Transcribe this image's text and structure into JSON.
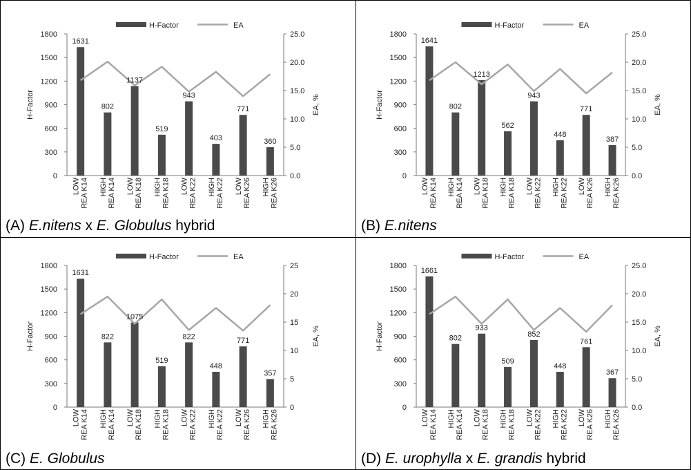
{
  "legend": {
    "bar_label": "H-Factor",
    "line_label": "EA",
    "bar_color": "#4a4a4a",
    "line_color": "#a6a6a6"
  },
  "chart_data": [
    {
      "type": "bar",
      "panel": "A",
      "caption": [
        {
          "text": "(A) ",
          "italic": false
        },
        {
          "text": "E.nitens",
          "italic": true
        },
        {
          "text": " x ",
          "italic": false
        },
        {
          "text": "E. Globulus",
          "italic": true
        },
        {
          "text": " hybrid",
          "italic": false
        }
      ],
      "categories": [
        [
          "LOW",
          "REA K14"
        ],
        [
          "HIGH",
          "REA K14"
        ],
        [
          "LOW",
          "REA K18"
        ],
        [
          "HIGH",
          "REA K18"
        ],
        [
          "LOW",
          "REA K22"
        ],
        [
          "HIGH",
          "REA K22"
        ],
        [
          "LOW",
          "REA K26"
        ],
        [
          "HIGH",
          "REA K26"
        ]
      ],
      "series": [
        {
          "name": "H-Factor",
          "type": "bar",
          "axis": "left",
          "values": [
            1631,
            802,
            1137,
            519,
            943,
            403,
            771,
            360
          ]
        },
        {
          "name": "EA",
          "type": "line",
          "axis": "right",
          "values": [
            16.8,
            20.1,
            15.9,
            19.2,
            14.8,
            18.3,
            14.0,
            17.9
          ]
        }
      ],
      "ylabel": "H-Factor",
      "y2label": "EA, %",
      "ylim": [
        0,
        1800
      ],
      "yticks": [
        "0",
        "300",
        "600",
        "900",
        "1200",
        "1500",
        "1800"
      ],
      "y2lim": [
        0,
        25
      ],
      "y2ticks": [
        "0.0",
        "5.0",
        "10.0",
        "15.0",
        "20.0",
        "25.0"
      ],
      "data_labels": [
        "1631",
        "802",
        "1137",
        "519",
        "943",
        "403",
        "771",
        "360"
      ]
    },
    {
      "type": "bar",
      "panel": "B",
      "caption": [
        {
          "text": "(B) ",
          "italic": false
        },
        {
          "text": "E.nitens",
          "italic": true
        }
      ],
      "categories": [
        [
          "LOW",
          "REA K14"
        ],
        [
          "HIGH",
          "REA K14"
        ],
        [
          "LOW",
          "REA K18"
        ],
        [
          "HIGH",
          "REA K18"
        ],
        [
          "LOW",
          "REA K22"
        ],
        [
          "HIGH",
          "REA K22"
        ],
        [
          "LOW",
          "REA K26"
        ],
        [
          "HIGH",
          "REA K26"
        ]
      ],
      "series": [
        {
          "name": "H-Factor",
          "type": "bar",
          "axis": "left",
          "values": [
            1641,
            802,
            1213,
            562,
            943,
            448,
            771,
            387
          ]
        },
        {
          "name": "EA",
          "type": "line",
          "axis": "right",
          "values": [
            16.8,
            20.0,
            16.1,
            19.6,
            14.9,
            18.8,
            14.5,
            18.2
          ]
        }
      ],
      "ylabel": "H-Factor",
      "y2label": "EA, %",
      "ylim": [
        0,
        1800
      ],
      "yticks": [
        "0",
        "300",
        "600",
        "900",
        "1200",
        "1500",
        "1800"
      ],
      "y2lim": [
        0,
        25
      ],
      "y2ticks": [
        "0.0",
        "5.0",
        "10.0",
        "15.0",
        "20.0",
        "25.0"
      ],
      "data_labels": [
        "1641",
        "802",
        "1213",
        "562",
        "943",
        "448",
        "771",
        "387"
      ]
    },
    {
      "type": "bar",
      "panel": "C",
      "caption": [
        {
          "text": "(C) ",
          "italic": false
        },
        {
          "text": "E. Globulus",
          "italic": true
        }
      ],
      "categories": [
        [
          "LOW",
          "REA K14"
        ],
        [
          "HIGH",
          "REA K14"
        ],
        [
          "LOW",
          "REA K18"
        ],
        [
          "HIGH",
          "REA K18"
        ],
        [
          "LOW",
          "REA K22"
        ],
        [
          "HIGH",
          "REA K22"
        ],
        [
          "LOW",
          "REA K26"
        ],
        [
          "HIGH",
          "REA K26"
        ]
      ],
      "series": [
        {
          "name": "H-Factor",
          "type": "bar",
          "axis": "left",
          "values": [
            1631,
            822,
            1075,
            519,
            822,
            448,
            771,
            357
          ]
        },
        {
          "name": "EA",
          "type": "line",
          "axis": "right",
          "values": [
            16.4,
            19.5,
            14.7,
            19.0,
            13.6,
            17.5,
            13.5,
            18.0
          ]
        }
      ],
      "ylabel": "H-Factor",
      "y2label": "EA, %",
      "ylim": [
        0,
        1800
      ],
      "yticks": [
        "0",
        "300",
        "600",
        "900",
        "1200",
        "1500",
        "1800"
      ],
      "y2lim": [
        0,
        25
      ],
      "y2ticks": [
        "0",
        "5",
        "10",
        "15",
        "20",
        "25"
      ],
      "data_labels": [
        "1631",
        "822",
        "1075",
        "519",
        "822",
        "448",
        "771",
        "357"
      ]
    },
    {
      "type": "bar",
      "panel": "D",
      "caption": [
        {
          "text": "(D) ",
          "italic": false
        },
        {
          "text": "E. urophylla",
          "italic": true
        },
        {
          "text": " x ",
          "italic": false
        },
        {
          "text": "E. grandis",
          "italic": true
        },
        {
          "text": " hybrid",
          "italic": false
        }
      ],
      "categories": [
        [
          "LOW",
          "REA K14"
        ],
        [
          "HIGH",
          "REA K14"
        ],
        [
          "LOW",
          "REA K18"
        ],
        [
          "HIGH",
          "REA K18"
        ],
        [
          "LOW",
          "REA K22"
        ],
        [
          "HIGH",
          "REA K22"
        ],
        [
          "LOW",
          "REA K26"
        ],
        [
          "HIGH",
          "REA K26"
        ]
      ],
      "series": [
        {
          "name": "H-Factor",
          "type": "bar",
          "axis": "left",
          "values": [
            1661,
            802,
            933,
            509,
            852,
            448,
            761,
            367
          ]
        },
        {
          "name": "EA",
          "type": "line",
          "axis": "right",
          "values": [
            16.4,
            19.5,
            14.7,
            19.0,
            13.6,
            17.5,
            13.3,
            18.0
          ]
        }
      ],
      "ylabel": "H-Factor",
      "y2label": "EA, %",
      "ylim": [
        0,
        1800
      ],
      "yticks": [
        "0",
        "300",
        "600",
        "900",
        "1200",
        "1500",
        "1800"
      ],
      "y2lim": [
        0,
        25
      ],
      "y2ticks": [
        "0.0",
        "5.0",
        "10.0",
        "15.0",
        "20.0",
        "25.0"
      ],
      "data_labels": [
        "1661",
        "802",
        "933",
        "509",
        "852",
        "448",
        "761",
        "367"
      ]
    }
  ]
}
